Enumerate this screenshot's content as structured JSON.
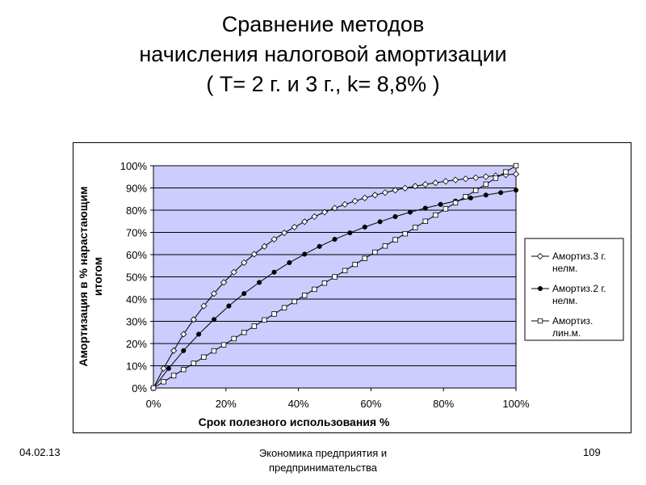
{
  "slide": {
    "title_lines": [
      "Сравнение методов",
      "начисления налоговой амортизации",
      "( Т= 2 г. и 3 г., k= 8,8% )"
    ]
  },
  "footer": {
    "date": "04.02.13",
    "center_line1": "Экономика предприятия и",
    "center_line2": "предпринимательства",
    "page": "109"
  },
  "colors": {
    "plot_background": "#ccccff",
    "chart_background": "#ffffff",
    "gridline": "#000000",
    "series": "#000000"
  },
  "chart_data": {
    "type": "line",
    "xlabel": "Срок полезного использования %",
    "ylabel_lines": [
      "Амортизация в % нарастающим",
      "итогом"
    ],
    "xlim": [
      0,
      100
    ],
    "ylim": [
      0,
      100
    ],
    "x_ticks": [
      "0%",
      "20%",
      "40%",
      "60%",
      "80%",
      "100%"
    ],
    "y_ticks": [
      "0%",
      "10%",
      "20%",
      "30%",
      "40%",
      "50%",
      "60%",
      "70%",
      "80%",
      "90%",
      "100%"
    ],
    "grid": true,
    "legend_position": "right",
    "series": [
      {
        "name_lines": [
          "Амортиз.3 г.",
          "нелм."
        ],
        "marker": "open-diamond",
        "x": [
          0,
          2.8,
          5.6,
          8.3,
          11.1,
          13.9,
          16.7,
          19.4,
          22.2,
          25,
          27.8,
          30.6,
          33.3,
          36.1,
          38.9,
          41.7,
          44.4,
          47.2,
          50,
          52.8,
          55.6,
          58.3,
          61.1,
          63.9,
          66.7,
          69.4,
          72.2,
          75,
          77.8,
          80.6,
          83.3,
          86.1,
          88.9,
          91.7,
          94.4,
          97.2,
          100
        ],
        "y": [
          0,
          8.8,
          16.8,
          24.2,
          30.8,
          36.9,
          42.5,
          47.5,
          52.1,
          56.4,
          60.2,
          63.7,
          66.9,
          69.8,
          72.4,
          74.8,
          77.1,
          79.1,
          80.9,
          82.6,
          84.1,
          85.5,
          86.8,
          87.9,
          89.0,
          89.9,
          90.8,
          91.6,
          92.3,
          93.0,
          93.6,
          94.1,
          94.6,
          95.1,
          95.5,
          95.9,
          96.2
        ]
      },
      {
        "name_lines": [
          "Амортиз.2 г.",
          "нелм."
        ],
        "marker": "filled-circle",
        "x": [
          0,
          4.2,
          8.3,
          12.5,
          16.7,
          20.8,
          25,
          29.2,
          33.3,
          37.5,
          41.7,
          45.8,
          50,
          54.2,
          58.3,
          62.5,
          66.7,
          70.8,
          75,
          79.2,
          83.3,
          87.5,
          91.7,
          95.8,
          100
        ],
        "y": [
          0,
          8.8,
          16.8,
          24.2,
          30.8,
          36.9,
          42.5,
          47.5,
          52.1,
          56.4,
          60.2,
          63.7,
          66.9,
          69.8,
          72.4,
          74.8,
          77.1,
          79.1,
          80.9,
          82.6,
          84.1,
          85.5,
          86.8,
          87.9,
          89.0
        ]
      },
      {
        "name_lines": [
          "Амортиз.",
          "лин.м."
        ],
        "marker": "open-square",
        "x": [
          0,
          2.8,
          5.6,
          8.3,
          11.1,
          13.9,
          16.7,
          19.4,
          22.2,
          25,
          27.8,
          30.6,
          33.3,
          36.1,
          38.9,
          41.7,
          44.4,
          47.2,
          50,
          52.8,
          55.6,
          58.3,
          61.1,
          63.9,
          66.7,
          69.4,
          72.2,
          75,
          77.8,
          80.6,
          83.3,
          86.1,
          88.9,
          91.7,
          94.4,
          97.2,
          100
        ],
        "y": [
          0,
          2.8,
          5.6,
          8.3,
          11.1,
          13.9,
          16.7,
          19.4,
          22.2,
          25,
          27.8,
          30.6,
          33.3,
          36.1,
          38.9,
          41.7,
          44.4,
          47.2,
          50,
          52.8,
          55.6,
          58.3,
          61.1,
          63.9,
          66.7,
          69.4,
          72.2,
          75,
          77.8,
          80.6,
          83.3,
          86.1,
          88.9,
          91.7,
          94.4,
          97.2,
          100
        ]
      }
    ]
  }
}
